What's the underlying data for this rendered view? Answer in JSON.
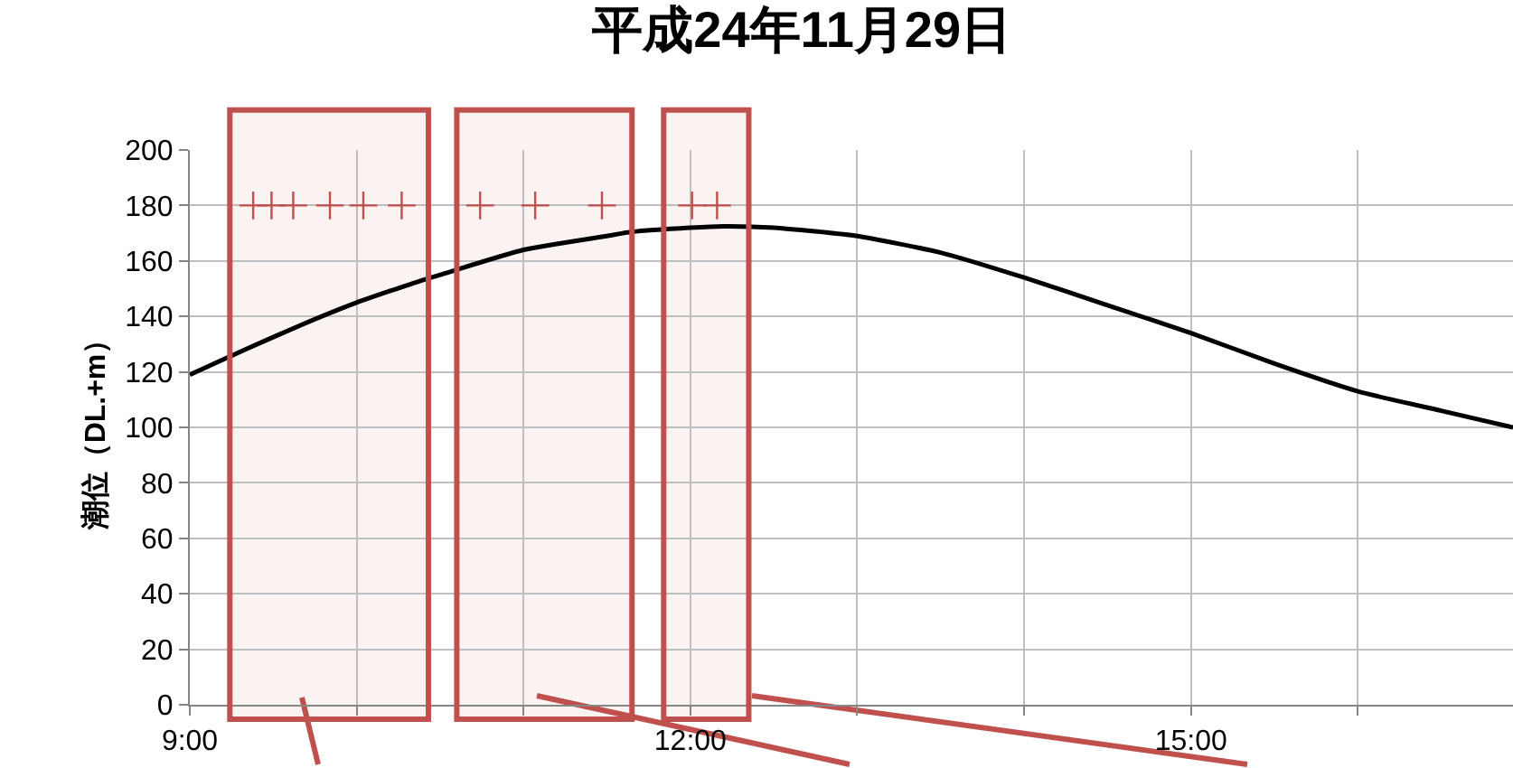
{
  "chart_data": {
    "type": "line",
    "title": "平成24年11月29日",
    "ylabel": "潮位（DL.+m）",
    "xlim": [
      9,
      16.93
    ],
    "xticks": [
      {
        "value": 9,
        "label": "9:00"
      },
      {
        "value": 10,
        "label": null
      },
      {
        "value": 11,
        "label": null
      },
      {
        "value": 12,
        "label": "12:00"
      },
      {
        "value": 13,
        "label": null
      },
      {
        "value": 14,
        "label": null
      },
      {
        "value": 15,
        "label": "15:00"
      },
      {
        "value": 16,
        "label": null
      }
    ],
    "ylim": [
      0,
      200
    ],
    "yticks": [
      0,
      20,
      40,
      60,
      80,
      100,
      120,
      140,
      160,
      180,
      200
    ],
    "grid": true,
    "bands": [
      {
        "axis": "x",
        "from": 9.24,
        "to": 10.43,
        "color": "#c0504d"
      },
      {
        "axis": "x",
        "from": 10.6,
        "to": 11.65,
        "color": "#c0504d"
      },
      {
        "axis": "x",
        "from": 11.84,
        "to": 12.35,
        "color": "#c0504d"
      }
    ],
    "series": [
      {
        "color": "#000000",
        "marker": "none",
        "line_style": "solid",
        "x": [
          9,
          9.33,
          9.67,
          10,
          10.39,
          10.5,
          11,
          11.5,
          11.65,
          12,
          12.2,
          12.5,
          13,
          13.5,
          14,
          14.5,
          15,
          15.5,
          16,
          16.5,
          16.93
        ],
        "values": [
          119,
          128,
          137,
          145,
          153,
          155,
          164,
          169,
          170.5,
          172,
          172.5,
          172,
          169,
          163,
          154,
          144,
          134,
          123,
          113,
          106,
          100
        ]
      },
      {
        "type": "scatter",
        "color": "#c0504d",
        "marker": "cross",
        "x": [
          9.38,
          9.49,
          9.62,
          9.84,
          10.04,
          10.27,
          10.74,
          11.07,
          11.47,
          12.01,
          12.16
        ],
        "values": [
          180,
          180,
          180,
          180,
          180,
          180,
          180,
          180,
          180,
          180,
          180
        ]
      }
    ]
  }
}
